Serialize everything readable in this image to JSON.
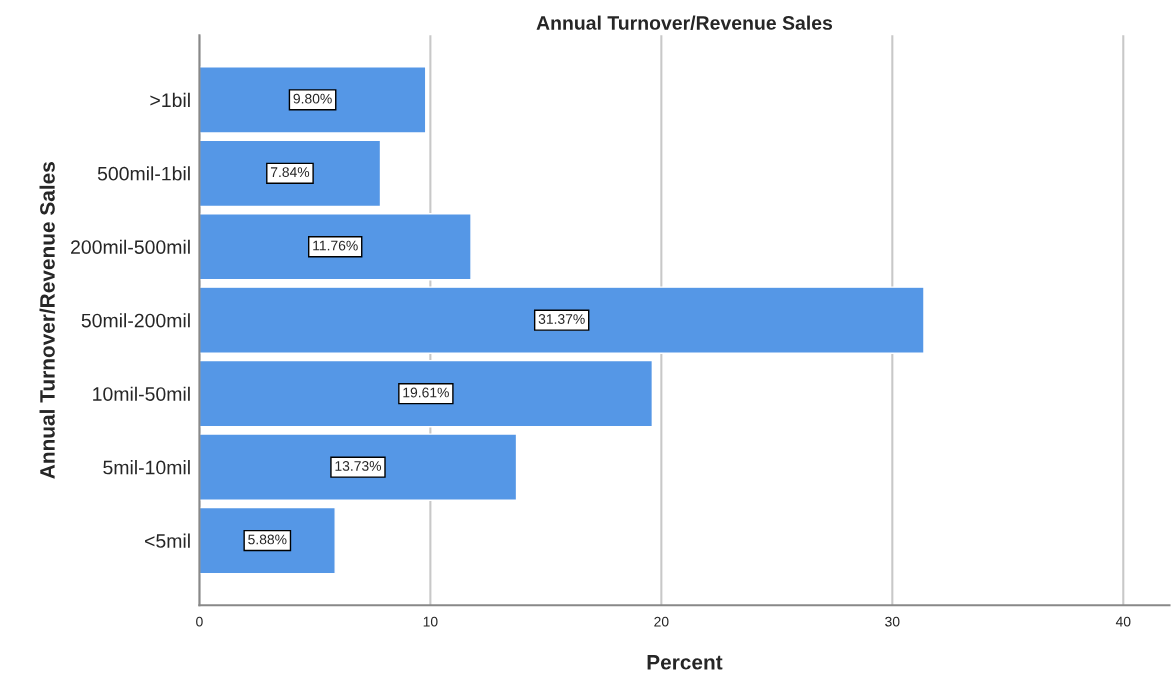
{
  "chart_data": {
    "type": "bar",
    "orientation": "horizontal",
    "title": "Annual Turnover/Revenue Sales",
    "xlabel": "Percent",
    "ylabel": "Annual Turnover/Revenue Sales",
    "categories": [
      ">1bil",
      "500mil-1bil",
      "200mil-500mil",
      "50mil-200mil",
      "10mil-50mil",
      "5mil-10mil",
      "<5mil"
    ],
    "values": [
      9.8,
      7.84,
      11.76,
      31.37,
      19.61,
      13.73,
      5.88
    ],
    "value_labels": [
      "9.80%",
      "7.84%",
      "11.76%",
      "31.37%",
      "19.61%",
      "13.73%",
      "5.88%"
    ],
    "color": "#5597e6",
    "xlim": [
      0,
      42
    ],
    "xticks": [
      0,
      10,
      20,
      30,
      40
    ],
    "grid": "x",
    "legend": false
  }
}
